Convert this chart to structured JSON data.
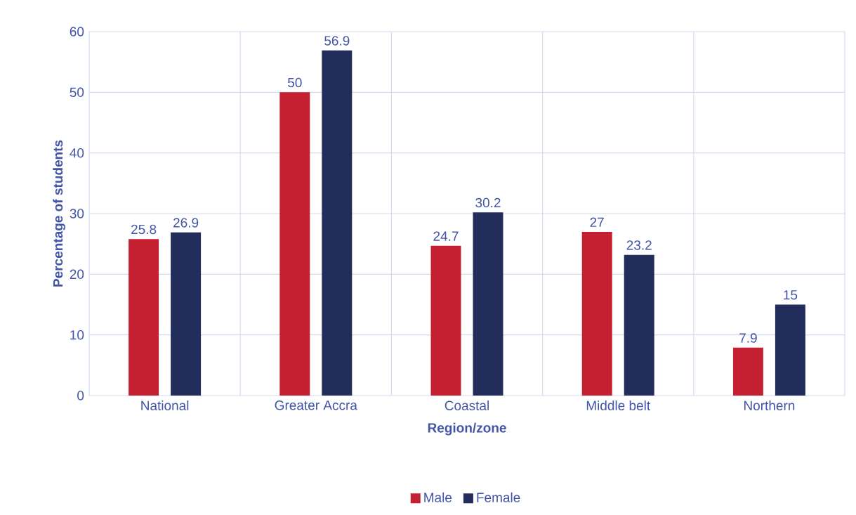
{
  "chart_data": {
    "type": "bar",
    "xlabel": "Region/zone",
    "ylabel": "Percentage of students",
    "categories": [
      "National",
      "Greater Accra",
      "Coastal",
      "Middle belt",
      "Northern"
    ],
    "series": [
      {
        "name": "Male",
        "color": "#c52032",
        "values": [
          25.8,
          50,
          24.7,
          27,
          7.9
        ]
      },
      {
        "name": "Female",
        "color": "#232d5c",
        "values": [
          26.9,
          56.9,
          30.2,
          23.2,
          15
        ]
      }
    ],
    "ylim": [
      0,
      60
    ],
    "yticks": [
      0,
      10,
      20,
      30,
      40,
      50,
      60
    ],
    "grid": true,
    "legend": "bottom",
    "data_labels": true
  }
}
